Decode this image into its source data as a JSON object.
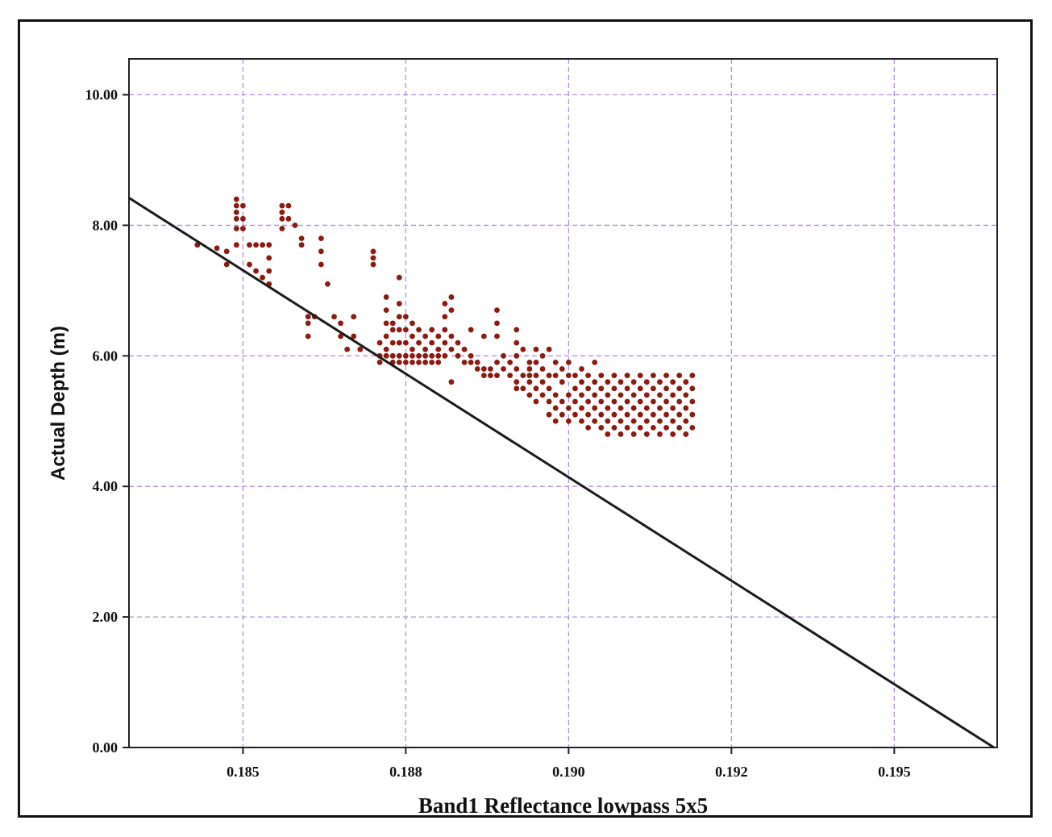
{
  "chart_data": {
    "type": "scatter",
    "title": "",
    "xlabel": "Band1 Reflectance lowpass 5x5",
    "ylabel": "Actual Depth (m)",
    "xlim": [
      0.18325,
      0.19658
    ],
    "ylim": [
      0,
      10.55
    ],
    "x_ticks": [
      {
        "value": 0.185,
        "label": "0.185"
      },
      {
        "value": 0.1875,
        "label": "0.188"
      },
      {
        "value": 0.19,
        "label": "0.190"
      },
      {
        "value": 0.1925,
        "label": "0.192"
      },
      {
        "value": 0.195,
        "label": "0.195"
      }
    ],
    "y_ticks": [
      {
        "value": 0,
        "label": "0.00"
      },
      {
        "value": 2,
        "label": "2.00"
      },
      {
        "value": 4,
        "label": "4.00"
      },
      {
        "value": 6,
        "label": "6.00"
      },
      {
        "value": 8,
        "label": "8.00"
      },
      {
        "value": 10,
        "label": "10.00"
      }
    ],
    "grid": true,
    "legend": "none",
    "colors": {
      "points": "#8b1a10",
      "fit_line": "#1a1a1a",
      "grid": "#b48fe0"
    },
    "fit_line": {
      "x": [
        0.18325,
        0.19653
      ],
      "y": [
        8.42,
        0.0
      ]
    },
    "series": [
      {
        "name": "",
        "points": [
          [
            0.1843,
            7.7
          ],
          [
            0.1846,
            7.65
          ],
          [
            0.18475,
            7.4
          ],
          [
            0.18475,
            7.6
          ],
          [
            0.1849,
            8.4
          ],
          [
            0.1849,
            8.3
          ],
          [
            0.1849,
            8.2
          ],
          [
            0.1849,
            8.1
          ],
          [
            0.1849,
            7.95
          ],
          [
            0.1849,
            7.7
          ],
          [
            0.185,
            8.3
          ],
          [
            0.185,
            8.1
          ],
          [
            0.185,
            7.95
          ],
          [
            0.1851,
            7.7
          ],
          [
            0.1851,
            7.4
          ],
          [
            0.1852,
            7.7
          ],
          [
            0.1852,
            7.3
          ],
          [
            0.1853,
            7.7
          ],
          [
            0.1853,
            7.2
          ],
          [
            0.1854,
            7.7
          ],
          [
            0.1854,
            7.5
          ],
          [
            0.1854,
            7.3
          ],
          [
            0.1854,
            7.1
          ],
          [
            0.1856,
            8.3
          ],
          [
            0.1856,
            8.2
          ],
          [
            0.1856,
            8.1
          ],
          [
            0.1856,
            7.95
          ],
          [
            0.1857,
            8.3
          ],
          [
            0.1857,
            8.1
          ],
          [
            0.1858,
            8.0
          ],
          [
            0.1859,
            7.8
          ],
          [
            0.1859,
            7.7
          ],
          [
            0.186,
            6.6
          ],
          [
            0.186,
            6.5
          ],
          [
            0.186,
            6.3
          ],
          [
            0.1861,
            6.6
          ],
          [
            0.1862,
            7.8
          ],
          [
            0.1862,
            7.6
          ],
          [
            0.1862,
            7.4
          ],
          [
            0.1863,
            7.1
          ],
          [
            0.1864,
            6.6
          ],
          [
            0.1865,
            6.5
          ],
          [
            0.1865,
            6.3
          ],
          [
            0.1866,
            6.1
          ],
          [
            0.1867,
            6.6
          ],
          [
            0.1867,
            6.3
          ],
          [
            0.1868,
            6.1
          ],
          [
            0.187,
            7.6
          ],
          [
            0.187,
            7.5
          ],
          [
            0.187,
            7.4
          ],
          [
            0.1871,
            6.2
          ],
          [
            0.1871,
            6.0
          ],
          [
            0.1871,
            5.9
          ],
          [
            0.1872,
            6.9
          ],
          [
            0.1872,
            6.7
          ],
          [
            0.1872,
            6.5
          ],
          [
            0.1872,
            6.3
          ],
          [
            0.1872,
            6.1
          ],
          [
            0.1872,
            6.0
          ],
          [
            0.1873,
            6.5
          ],
          [
            0.1873,
            6.4
          ],
          [
            0.1873,
            6.2
          ],
          [
            0.1873,
            6.0
          ],
          [
            0.1873,
            5.9
          ],
          [
            0.1874,
            7.2
          ],
          [
            0.1874,
            6.8
          ],
          [
            0.1874,
            6.6
          ],
          [
            0.1874,
            6.4
          ],
          [
            0.1874,
            6.2
          ],
          [
            0.1874,
            6.0
          ],
          [
            0.1874,
            5.9
          ],
          [
            0.1875,
            6.6
          ],
          [
            0.1875,
            6.4
          ],
          [
            0.1875,
            6.2
          ],
          [
            0.1875,
            6.0
          ],
          [
            0.1875,
            5.9
          ],
          [
            0.1876,
            6.5
          ],
          [
            0.1876,
            6.3
          ],
          [
            0.1876,
            6.1
          ],
          [
            0.1876,
            6.0
          ],
          [
            0.1876,
            5.9
          ],
          [
            0.1877,
            6.4
          ],
          [
            0.1877,
            6.2
          ],
          [
            0.1877,
            6.0
          ],
          [
            0.1877,
            5.9
          ],
          [
            0.1878,
            6.3
          ],
          [
            0.1878,
            6.1
          ],
          [
            0.1878,
            6.0
          ],
          [
            0.1878,
            5.9
          ],
          [
            0.1879,
            6.4
          ],
          [
            0.1879,
            6.2
          ],
          [
            0.1879,
            6.0
          ],
          [
            0.1879,
            5.9
          ],
          [
            0.188,
            6.3
          ],
          [
            0.188,
            6.1
          ],
          [
            0.188,
            6.0
          ],
          [
            0.188,
            5.9
          ],
          [
            0.1881,
            6.8
          ],
          [
            0.1881,
            6.6
          ],
          [
            0.1881,
            6.4
          ],
          [
            0.1881,
            6.2
          ],
          [
            0.1881,
            6.0
          ],
          [
            0.1882,
            6.9
          ],
          [
            0.1882,
            6.7
          ],
          [
            0.1882,
            6.3
          ],
          [
            0.1882,
            6.1
          ],
          [
            0.1882,
            5.6
          ],
          [
            0.1883,
            6.2
          ],
          [
            0.1883,
            6.0
          ],
          [
            0.1884,
            6.1
          ],
          [
            0.1884,
            5.9
          ],
          [
            0.1885,
            6.4
          ],
          [
            0.1885,
            6.0
          ],
          [
            0.1885,
            5.9
          ],
          [
            0.1886,
            5.9
          ],
          [
            0.1886,
            5.8
          ],
          [
            0.1887,
            6.3
          ],
          [
            0.1887,
            5.8
          ],
          [
            0.1887,
            5.7
          ],
          [
            0.1888,
            5.8
          ],
          [
            0.1888,
            5.7
          ],
          [
            0.1889,
            6.7
          ],
          [
            0.1889,
            6.5
          ],
          [
            0.1889,
            6.3
          ],
          [
            0.1889,
            5.9
          ],
          [
            0.1889,
            5.7
          ],
          [
            0.189,
            6.0
          ],
          [
            0.189,
            5.8
          ],
          [
            0.1891,
            5.9
          ],
          [
            0.1891,
            5.7
          ],
          [
            0.1892,
            6.4
          ],
          [
            0.1892,
            6.2
          ],
          [
            0.1892,
            6.0
          ],
          [
            0.1892,
            5.8
          ],
          [
            0.1892,
            5.6
          ],
          [
            0.1892,
            5.5
          ],
          [
            0.1893,
            6.1
          ],
          [
            0.1893,
            5.7
          ],
          [
            0.1893,
            5.5
          ],
          [
            0.1894,
            5.9
          ],
          [
            0.1894,
            5.8
          ],
          [
            0.1894,
            5.7
          ],
          [
            0.1894,
            5.6
          ],
          [
            0.1894,
            5.4
          ],
          [
            0.1895,
            6.1
          ],
          [
            0.1895,
            5.9
          ],
          [
            0.1895,
            5.7
          ],
          [
            0.1895,
            5.5
          ],
          [
            0.1895,
            5.3
          ],
          [
            0.1896,
            6.0
          ],
          [
            0.1896,
            5.8
          ],
          [
            0.1896,
            5.6
          ],
          [
            0.1896,
            5.4
          ],
          [
            0.1897,
            6.1
          ],
          [
            0.1897,
            5.7
          ],
          [
            0.1897,
            5.5
          ],
          [
            0.1897,
            5.3
          ],
          [
            0.1897,
            5.1
          ],
          [
            0.1898,
            5.9
          ],
          [
            0.1898,
            5.7
          ],
          [
            0.1898,
            5.4
          ],
          [
            0.1898,
            5.2
          ],
          [
            0.1898,
            5.0
          ],
          [
            0.1899,
            5.8
          ],
          [
            0.1899,
            5.6
          ],
          [
            0.1899,
            5.3
          ],
          [
            0.1899,
            5.1
          ],
          [
            0.19,
            5.9
          ],
          [
            0.19,
            5.7
          ],
          [
            0.19,
            5.4
          ],
          [
            0.19,
            5.2
          ],
          [
            0.19,
            5.0
          ],
          [
            0.1901,
            5.7
          ],
          [
            0.1901,
            5.5
          ],
          [
            0.1901,
            5.3
          ],
          [
            0.1901,
            5.1
          ],
          [
            0.1902,
            5.8
          ],
          [
            0.1902,
            5.6
          ],
          [
            0.1902,
            5.4
          ],
          [
            0.1902,
            5.2
          ],
          [
            0.1902,
            5.0
          ],
          [
            0.1903,
            5.7
          ],
          [
            0.1903,
            5.5
          ],
          [
            0.1903,
            5.3
          ],
          [
            0.1903,
            5.1
          ],
          [
            0.1903,
            4.9
          ],
          [
            0.1904,
            5.9
          ],
          [
            0.1904,
            5.6
          ],
          [
            0.1904,
            5.4
          ],
          [
            0.1904,
            5.2
          ],
          [
            0.1904,
            5.0
          ],
          [
            0.1905,
            5.7
          ],
          [
            0.1905,
            5.5
          ],
          [
            0.1905,
            5.3
          ],
          [
            0.1905,
            5.1
          ],
          [
            0.1905,
            4.9
          ],
          [
            0.1906,
            5.6
          ],
          [
            0.1906,
            5.4
          ],
          [
            0.1906,
            5.2
          ],
          [
            0.1906,
            5.0
          ],
          [
            0.1906,
            4.8
          ],
          [
            0.1907,
            5.7
          ],
          [
            0.1907,
            5.5
          ],
          [
            0.1907,
            5.3
          ],
          [
            0.1907,
            5.1
          ],
          [
            0.1907,
            4.9
          ],
          [
            0.1908,
            5.6
          ],
          [
            0.1908,
            5.4
          ],
          [
            0.1908,
            5.2
          ],
          [
            0.1908,
            5.0
          ],
          [
            0.1908,
            4.8
          ],
          [
            0.1909,
            5.7
          ],
          [
            0.1909,
            5.5
          ],
          [
            0.1909,
            5.3
          ],
          [
            0.1909,
            5.1
          ],
          [
            0.1909,
            4.9
          ],
          [
            0.191,
            5.6
          ],
          [
            0.191,
            5.4
          ],
          [
            0.191,
            5.2
          ],
          [
            0.191,
            5.0
          ],
          [
            0.191,
            4.8
          ],
          [
            0.1911,
            5.7
          ],
          [
            0.1911,
            5.5
          ],
          [
            0.1911,
            5.3
          ],
          [
            0.1911,
            5.1
          ],
          [
            0.1911,
            4.9
          ],
          [
            0.1912,
            5.6
          ],
          [
            0.1912,
            5.4
          ],
          [
            0.1912,
            5.2
          ],
          [
            0.1912,
            5.0
          ],
          [
            0.1912,
            4.8
          ],
          [
            0.1913,
            5.7
          ],
          [
            0.1913,
            5.5
          ],
          [
            0.1913,
            5.3
          ],
          [
            0.1913,
            5.1
          ],
          [
            0.1913,
            4.9
          ],
          [
            0.1914,
            5.6
          ],
          [
            0.1914,
            5.4
          ],
          [
            0.1914,
            5.2
          ],
          [
            0.1914,
            5.0
          ],
          [
            0.1914,
            4.8
          ],
          [
            0.1915,
            5.7
          ],
          [
            0.1915,
            5.5
          ],
          [
            0.1915,
            5.3
          ],
          [
            0.1915,
            5.1
          ],
          [
            0.1915,
            4.9
          ],
          [
            0.1916,
            5.6
          ],
          [
            0.1916,
            5.4
          ],
          [
            0.1916,
            5.2
          ],
          [
            0.1916,
            5.0
          ],
          [
            0.1916,
            4.8
          ],
          [
            0.1917,
            5.7
          ],
          [
            0.1917,
            5.5
          ],
          [
            0.1917,
            5.3
          ],
          [
            0.1917,
            5.1
          ],
          [
            0.1917,
            4.9
          ],
          [
            0.1918,
            5.6
          ],
          [
            0.1918,
            5.4
          ],
          [
            0.1918,
            5.2
          ],
          [
            0.1918,
            5.0
          ],
          [
            0.1918,
            4.8
          ],
          [
            0.1919,
            5.7
          ],
          [
            0.1919,
            5.5
          ],
          [
            0.1919,
            5.3
          ],
          [
            0.1919,
            5.1
          ],
          [
            0.1919,
            4.9
          ]
        ]
      }
    ]
  }
}
